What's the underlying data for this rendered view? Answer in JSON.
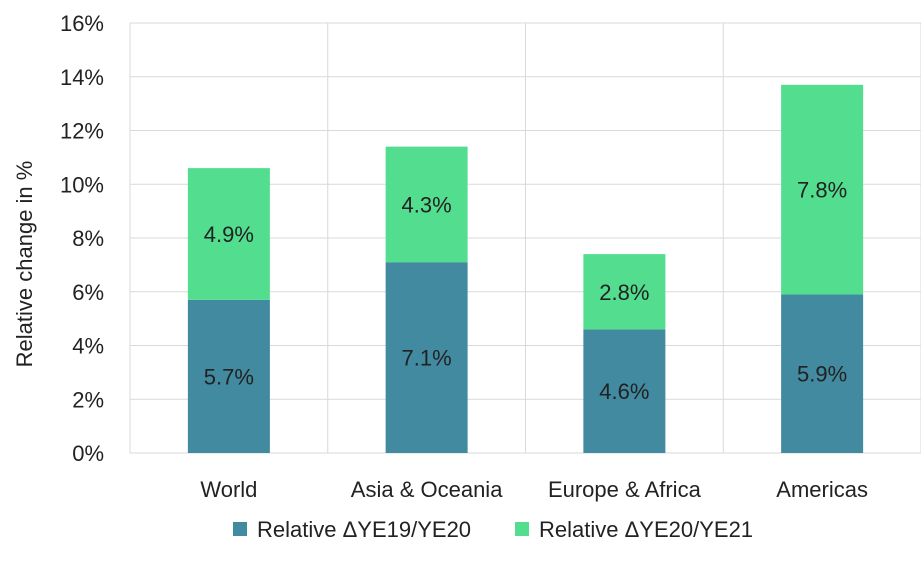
{
  "chart_data": {
    "type": "bar",
    "stacked": true,
    "categories": [
      "World",
      "Asia & Oceania",
      "Europe & Africa",
      "Americas"
    ],
    "series": [
      {
        "name": "Relative ΔYE19/YE20",
        "values": [
          5.7,
          7.1,
          4.6,
          5.9
        ],
        "labels": [
          "5.7%",
          "7.1%",
          "4.6%",
          "5.9%"
        ],
        "color": "#418AA0"
      },
      {
        "name": "Relative ΔYE20/YE21",
        "values": [
          4.9,
          4.3,
          2.8,
          7.8
        ],
        "labels": [
          "4.9%",
          "4.3%",
          "2.8%",
          "7.8%"
        ],
        "color": "#52DE8E"
      }
    ],
    "ylabel": "Relative change in %",
    "xlabel": "",
    "ylim": [
      0,
      16
    ],
    "y_ticks": [
      "0%",
      "2%",
      "4%",
      "6%",
      "8%",
      "10%",
      "12%",
      "14%",
      "16%"
    ],
    "grid": true,
    "legend_position": "bottom"
  }
}
